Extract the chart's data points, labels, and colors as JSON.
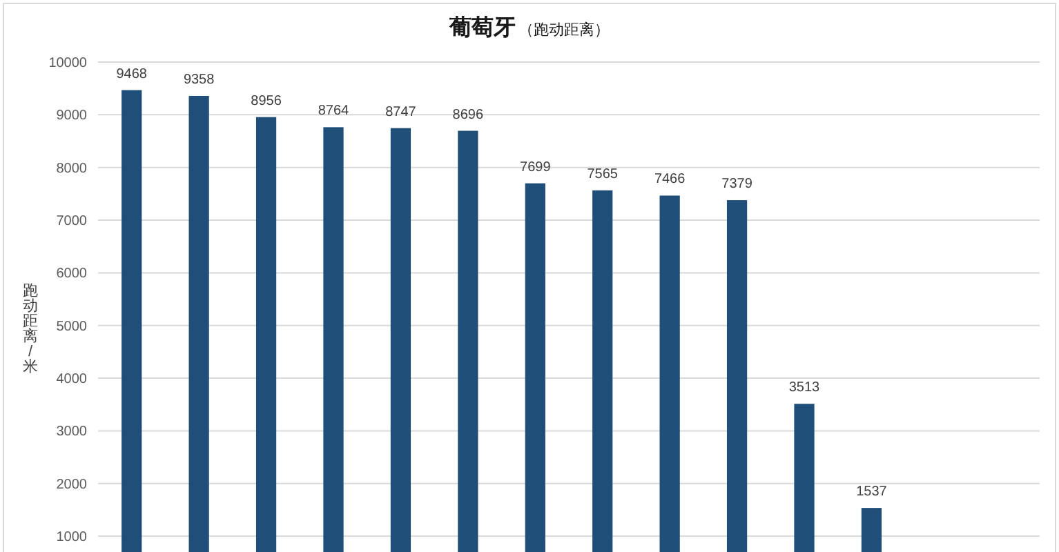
{
  "chart_data": {
    "type": "bar",
    "title": "葡萄牙",
    "subtitle": "（跑动距离）",
    "ylabel": "跑动距离/米",
    "categories": [
      null,
      null,
      null,
      null,
      null,
      null,
      null,
      null,
      null,
      null,
      null,
      null,
      null,
      null
    ],
    "values": [
      9468,
      9358,
      8956,
      8764,
      8747,
      8696,
      7699,
      7565,
      7466,
      7379,
      3513,
      1537,
      null,
      null
    ],
    "color": "#1f4e79",
    "ylim": [
      700,
      10000
    ],
    "yticks": [
      1000,
      2000,
      3000,
      4000,
      5000,
      6000,
      7000,
      8000,
      9000,
      10000
    ],
    "grid": "y",
    "data_labels": true
  }
}
